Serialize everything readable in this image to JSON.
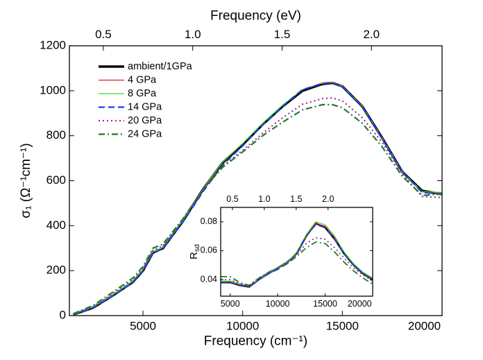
{
  "chart_data": [
    {
      "type": "line",
      "xlabel": "Frequency (cm⁻¹)",
      "ylabel": "σ₁ (Ω⁻¹cm⁻¹)",
      "x2label": "Frequency (eV)",
      "xlim": [
        1310,
        20000
      ],
      "ylim": [
        0,
        1200
      ],
      "x2lim": [
        0.31,
        2.395
      ],
      "xticks": [
        5000,
        10000,
        15000,
        20000
      ],
      "yticks": [
        0,
        200,
        400,
        600,
        800,
        1000,
        1200
      ],
      "x2ticks": [
        0.5,
        {
          "value": 1,
          "label": "1.0"
        },
        1.5,
        {
          "value": 2,
          "label": "2.0"
        }
      ],
      "legend": "upper left",
      "x": [
        1500,
        2500,
        3500,
        4500,
        5000,
        5500,
        6000,
        7000,
        8000,
        9000,
        10000,
        11000,
        12000,
        13000,
        14000,
        14500,
        15000,
        16000,
        17000,
        18000,
        19000,
        20000
      ],
      "series": [
        {
          "name": "ambient/1GPa",
          "color": "#000000",
          "style": "solid",
          "width": 3.5,
          "values": [
            5,
            35,
            90,
            150,
            200,
            280,
            300,
            420,
            560,
            680,
            760,
            850,
            930,
            1000,
            1030,
            1035,
            1020,
            930,
            790,
            640,
            555,
            540
          ]
        },
        {
          "name": "4 GPa",
          "color": "#e0201b",
          "style": "solid",
          "width": 1.2,
          "values": [
            5,
            37,
            92,
            152,
            203,
            282,
            302,
            422,
            560,
            682,
            765,
            855,
            935,
            1005,
            1035,
            1038,
            1022,
            932,
            788,
            638,
            550,
            545
          ]
        },
        {
          "name": "8 GPa",
          "color": "#33dd22",
          "style": "solid",
          "width": 1.2,
          "values": [
            6,
            38,
            93,
            153,
            205,
            283,
            303,
            423,
            562,
            683,
            766,
            856,
            936,
            1006,
            1033,
            1036,
            1020,
            930,
            790,
            640,
            552,
            548
          ]
        },
        {
          "name": "14 GPa",
          "color": "#1a3cf0",
          "style": "dash",
          "width": 2.2,
          "values": [
            4,
            34,
            88,
            148,
            198,
            278,
            298,
            415,
            550,
            670,
            755,
            848,
            930,
            1005,
            1032,
            1035,
            1020,
            928,
            788,
            640,
            548,
            540
          ]
        },
        {
          "name": "20 GPa",
          "color": "#9b2a9b",
          "style": "dot",
          "width": 2.2,
          "values": [
            6,
            40,
            98,
            160,
            210,
            290,
            310,
            425,
            560,
            665,
            735,
            810,
            880,
            940,
            965,
            968,
            955,
            880,
            770,
            630,
            530,
            525
          ]
        },
        {
          "name": "24 GPa",
          "color": "#237a23",
          "style": "dashdot",
          "width": 2.2,
          "values": [
            8,
            45,
            105,
            168,
            218,
            300,
            318,
            430,
            560,
            660,
            728,
            800,
            860,
            915,
            938,
            938,
            925,
            855,
            750,
            620,
            535,
            540
          ]
        }
      ]
    },
    {
      "type": "line",
      "ylabel": {
        "main": "R",
        "sub": "sd"
      },
      "xlim": [
        4000,
        20000
      ],
      "ylim": [
        0.0285,
        0.09
      ],
      "x2lim": [
        0.315,
        2.7
      ],
      "xticks": [
        5000,
        10000,
        15000,
        20000
      ],
      "yticks": [
        0.04,
        0.06,
        0.08
      ],
      "x2ticks": [
        0.5,
        {
          "value": 1,
          "label": "1.0"
        },
        1.5,
        {
          "value": 2,
          "label": "2.0"
        }
      ],
      "x": [
        4000,
        5000,
        6000,
        7000,
        8000,
        9000,
        10000,
        11000,
        12000,
        13000,
        14000,
        15000,
        16000,
        17000,
        18000,
        19000,
        20000
      ],
      "series": [
        {
          "color": "#000000",
          "style": "solid",
          "width": 2.5,
          "values": [
            0.038,
            0.038,
            0.036,
            0.035,
            0.04,
            0.044,
            0.048,
            0.052,
            0.058,
            0.07,
            0.079,
            0.076,
            0.068,
            0.058,
            0.05,
            0.044,
            0.04
          ]
        },
        {
          "color": "#e0201b",
          "style": "solid",
          "width": 1.2,
          "values": [
            0.038,
            0.038,
            0.036,
            0.035,
            0.04,
            0.044,
            0.048,
            0.052,
            0.058,
            0.07,
            0.079,
            0.077,
            0.069,
            0.059,
            0.05,
            0.044,
            0.04
          ]
        },
        {
          "color": "#33dd22",
          "style": "solid",
          "width": 1.2,
          "values": [
            0.039,
            0.039,
            0.037,
            0.036,
            0.04,
            0.044,
            0.048,
            0.052,
            0.059,
            0.071,
            0.08,
            0.078,
            0.07,
            0.059,
            0.051,
            0.045,
            0.041
          ]
        },
        {
          "color": "#1a3cf0",
          "style": "dash",
          "width": 1.8,
          "values": [
            0.038,
            0.038,
            0.036,
            0.035,
            0.04,
            0.044,
            0.047,
            0.051,
            0.058,
            0.07,
            0.078,
            0.076,
            0.068,
            0.058,
            0.05,
            0.044,
            0.04
          ]
        },
        {
          "color": "#9b2a9b",
          "style": "dot",
          "width": 1.8,
          "values": [
            0.04,
            0.04,
            0.037,
            0.036,
            0.041,
            0.045,
            0.048,
            0.052,
            0.057,
            0.065,
            0.069,
            0.068,
            0.062,
            0.055,
            0.048,
            0.043,
            0.039
          ]
        },
        {
          "color": "#237a23",
          "style": "dashdot",
          "width": 1.8,
          "values": [
            0.042,
            0.042,
            0.038,
            0.036,
            0.041,
            0.045,
            0.048,
            0.051,
            0.056,
            0.062,
            0.066,
            0.065,
            0.059,
            0.052,
            0.046,
            0.041,
            0.037
          ]
        }
      ]
    }
  ]
}
